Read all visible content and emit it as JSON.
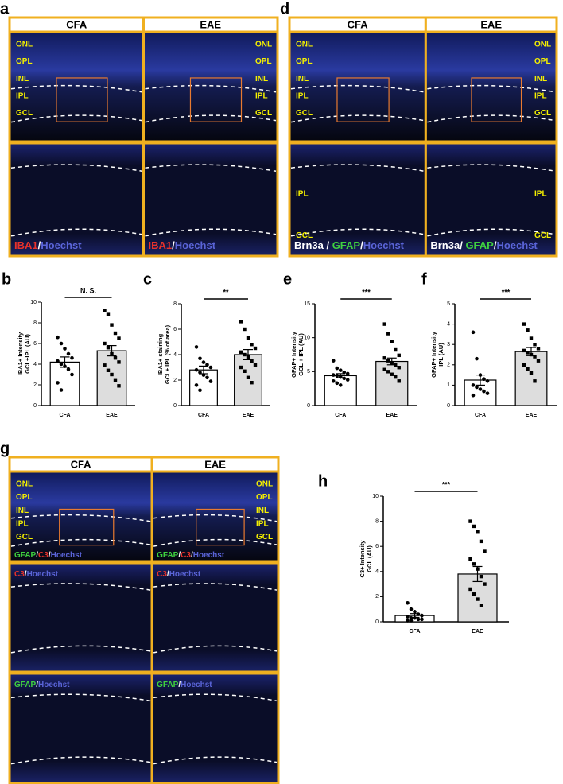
{
  "image_panels": [
    {
      "letter": "a",
      "columns": [
        "CFA",
        "EAE"
      ],
      "rows": [
        {
          "cells": [
            {
              "layers": [
                "ONL",
                "OPL",
                "INL",
                "IPL",
                "GCL"
              ],
              "stain": []
            },
            {
              "layers": [
                "ONL",
                "OPL",
                "INL",
                "IPL",
                "GCL"
              ],
              "stain": []
            }
          ]
        },
        {
          "cells": [
            {
              "layers": [],
              "stain": [
                {
                  "text": "IBA1",
                  "color": "#e8322b"
                },
                {
                  "text": "/",
                  "color": "#ffffff"
                },
                {
                  "text": "Hoechst",
                  "color": "#5a64d8"
                }
              ]
            },
            {
              "layers": [],
              "stain": [
                {
                  "text": "IBA1",
                  "color": "#e8322b"
                },
                {
                  "text": "/",
                  "color": "#ffffff"
                },
                {
                  "text": "Hoechst",
                  "color": "#5a64d8"
                }
              ]
            }
          ]
        }
      ]
    },
    {
      "letter": "d",
      "columns": [
        "CFA",
        "EAE"
      ],
      "rows": [
        {
          "cells": [
            {
              "layers": [
                "ONL",
                "OPL",
                "INL",
                "IPL",
                "GCL"
              ],
              "stain": []
            },
            {
              "layers": [
                "ONL",
                "OPL",
                "INL",
                "IPL",
                "GCL"
              ],
              "stain": []
            }
          ]
        },
        {
          "cells": [
            {
              "layers": [
                "IPL",
                "GCL"
              ],
              "stain": [
                {
                  "text": "Brn3a / ",
                  "color": "#ffffff"
                },
                {
                  "text": "GFAP",
                  "color": "#3fd13f"
                },
                {
                  "text": "/",
                  "color": "#ffffff"
                },
                {
                  "text": "Hoechst",
                  "color": "#5a64d8"
                }
              ]
            },
            {
              "layers": [
                "IPL",
                "GCL"
              ],
              "stain": [
                {
                  "text": "Brn3a/ ",
                  "color": "#ffffff"
                },
                {
                  "text": "GFAP",
                  "color": "#3fd13f"
                },
                {
                  "text": "/",
                  "color": "#ffffff"
                },
                {
                  "text": "Hoechst",
                  "color": "#5a64d8"
                }
              ]
            }
          ]
        }
      ]
    },
    {
      "letter": "g",
      "columns": [
        "CFA",
        "EAE"
      ],
      "rows": [
        {
          "cells": [
            {
              "layers": [
                "ONL",
                "OPL",
                "INL",
                "IPL",
                "GCL"
              ],
              "stain": [
                {
                  "text": "GFAP",
                  "color": "#3fd13f"
                },
                {
                  "text": "/",
                  "color": "#ffffff"
                },
                {
                  "text": "C3",
                  "color": "#e8322b"
                },
                {
                  "text": "/",
                  "color": "#ffffff"
                },
                {
                  "text": "Hoechst",
                  "color": "#5a64d8"
                }
              ]
            },
            {
              "layers": [
                "ONL",
                "OPL",
                "INL",
                "IPL",
                "GCL"
              ],
              "stain": [
                {
                  "text": "GFAP",
                  "color": "#3fd13f"
                },
                {
                  "text": "/",
                  "color": "#ffffff"
                },
                {
                  "text": "C3",
                  "color": "#e8322b"
                },
                {
                  "text": "/",
                  "color": "#ffffff"
                },
                {
                  "text": "Hoechst",
                  "color": "#5a64d8"
                }
              ]
            }
          ]
        },
        {
          "cells": [
            {
              "layers": [],
              "stain": [
                {
                  "text": "C3",
                  "color": "#e8322b"
                },
                {
                  "text": "/",
                  "color": "#ffffff"
                },
                {
                  "text": "Hoechst",
                  "color": "#5a64d8"
                }
              ]
            },
            {
              "layers": [],
              "stain": [
                {
                  "text": "C3",
                  "color": "#e8322b"
                },
                {
                  "text": "/",
                  "color": "#ffffff"
                },
                {
                  "text": "Hoechst",
                  "color": "#5a64d8"
                }
              ]
            }
          ]
        },
        {
          "cells": [
            {
              "layers": [],
              "stain": [
                {
                  "text": "GFAP",
                  "color": "#3fd13f"
                },
                {
                  "text": "/",
                  "color": "#ffffff"
                },
                {
                  "text": "Hoechst",
                  "color": "#5a64d8"
                }
              ]
            },
            {
              "layers": [],
              "stain": [
                {
                  "text": "GFAP",
                  "color": "#3fd13f"
                },
                {
                  "text": "/",
                  "color": "#ffffff"
                },
                {
                  "text": "Hoechst",
                  "color": "#5a64d8"
                }
              ]
            }
          ]
        }
      ]
    }
  ],
  "chart_data": [
    {
      "type": "bar",
      "letter": "b",
      "ylabel": [
        "IBA1+ Intensity",
        "GCL+IPL (AU)"
      ],
      "categories": [
        "CFA",
        "EAE"
      ],
      "colors": [
        "#ffffff",
        "#dddddd"
      ],
      "values": [
        4.2,
        5.3
      ],
      "errors": [
        0.5,
        0.5
      ],
      "points": [
        [
          6.6,
          6.0,
          5.5,
          5.0,
          4.6,
          4.3,
          4.0,
          3.8,
          3.5,
          3.0,
          2.2,
          1.5
        ],
        [
          9.2,
          8.8,
          7.8,
          7.0,
          6.5,
          6.0,
          5.6,
          5.0,
          4.6,
          4.2,
          3.9,
          3.4,
          3.0,
          2.4,
          1.9
        ]
      ],
      "ylim": [
        0,
        10
      ],
      "yticks": [
        0,
        2,
        4,
        6,
        8,
        10
      ],
      "annotation": "N. S."
    },
    {
      "type": "bar",
      "letter": "c",
      "ylabel": [
        "IBA1+ staining",
        "GCL+ IPL (% of area)"
      ],
      "categories": [
        "CFA",
        "EAE"
      ],
      "colors": [
        "#ffffff",
        "#dddddd"
      ],
      "values": [
        2.8,
        4.0
      ],
      "errors": [
        0.3,
        0.4
      ],
      "points": [
        [
          4.6,
          3.7,
          3.4,
          3.2,
          3.0,
          2.8,
          2.6,
          2.4,
          2.2,
          1.9,
          1.6,
          1.2
        ],
        [
          6.6,
          6.0,
          5.3,
          4.8,
          4.5,
          4.2,
          4.0,
          3.8,
          3.5,
          3.2,
          3.0,
          2.7,
          2.2,
          1.8
        ]
      ],
      "ylim": [
        0,
        8
      ],
      "yticks": [
        0,
        2,
        4,
        6,
        8
      ],
      "annotation": "**"
    },
    {
      "type": "bar",
      "letter": "e",
      "ylabel": [
        "GFAP+ Intensity",
        "GCL + IPL (AU)"
      ],
      "categories": [
        "CFA",
        "EAE"
      ],
      "colors": [
        "#ffffff",
        "#dddddd"
      ],
      "values": [
        4.4,
        6.5
      ],
      "errors": [
        0.3,
        0.5
      ],
      "points": [
        [
          6.6,
          5.5,
          5.2,
          4.9,
          4.7,
          4.5,
          4.4,
          4.2,
          4.0,
          3.8,
          3.6,
          3.3,
          3.0
        ],
        [
          12.0,
          10.6,
          9.4,
          8.2,
          7.4,
          7.0,
          6.6,
          6.3,
          6.0,
          5.6,
          5.3,
          5.0,
          4.6,
          4.2,
          3.6
        ]
      ],
      "ylim": [
        0,
        15
      ],
      "yticks": [
        0,
        5,
        10,
        15
      ],
      "annotation": "***"
    },
    {
      "type": "bar",
      "letter": "f",
      "ylabel": [
        "GFAP+ Intensity",
        "IPL (AU)"
      ],
      "categories": [
        "CFA",
        "EAE"
      ],
      "colors": [
        "#ffffff",
        "#dddddd"
      ],
      "values": [
        1.25,
        2.65
      ],
      "errors": [
        0.25,
        0.2
      ],
      "points": [
        [
          3.6,
          2.3,
          1.5,
          1.3,
          1.2,
          1.0,
          0.9,
          0.8,
          0.7,
          0.6,
          0.5
        ],
        [
          4.0,
          3.7,
          3.3,
          3.0,
          2.8,
          2.7,
          2.6,
          2.5,
          2.4,
          2.2,
          2.0,
          1.8,
          1.6,
          1.2
        ]
      ],
      "ylim": [
        0,
        5
      ],
      "yticks": [
        0,
        1,
        2,
        3,
        4,
        5
      ],
      "annotation": "***"
    },
    {
      "type": "bar",
      "letter": "h",
      "ylabel": [
        "C3+ Intensity",
        "GCL (AU)"
      ],
      "categories": [
        "CFA",
        "EAE"
      ],
      "colors": [
        "#ffffff",
        "#dddddd"
      ],
      "values": [
        0.5,
        3.8
      ],
      "errors": [
        0.15,
        0.6
      ],
      "points": [
        [
          1.5,
          1.0,
          0.8,
          0.6,
          0.5,
          0.4,
          0.3,
          0.3,
          0.2,
          0.2,
          0.1,
          0.1
        ],
        [
          8.0,
          7.6,
          7.2,
          6.4,
          5.6,
          5.0,
          4.6,
          4.2,
          3.6,
          3.0,
          2.6,
          2.2,
          1.8,
          1.3
        ]
      ],
      "ylim": [
        0,
        10
      ],
      "yticks": [
        0,
        2,
        4,
        6,
        8,
        10
      ],
      "annotation": "***"
    }
  ]
}
